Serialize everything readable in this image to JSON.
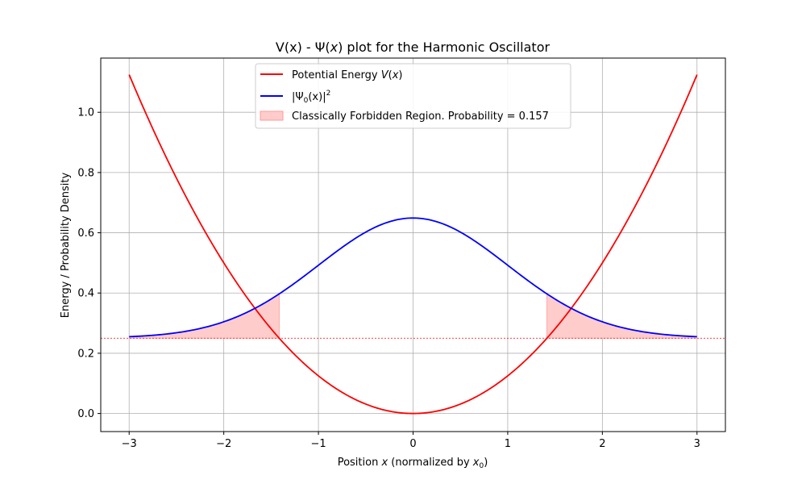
{
  "chart_data": {
    "type": "line",
    "title": "V(x) - Ψ(x) plot for the Harmonic Oscillator",
    "xlabel": "Position x (normalized by x0)",
    "ylabel": "Energy / Probability Density",
    "xlim": [
      -3.3,
      3.3
    ],
    "ylim": [
      -0.06,
      1.18
    ],
    "x_ticks": [
      -3,
      -2,
      -1,
      0,
      1,
      2,
      3
    ],
    "x_tick_labels": [
      "−3",
      "−2",
      "−1",
      "0",
      "1",
      "2",
      "3"
    ],
    "y_ticks": [
      0.0,
      0.2,
      0.4,
      0.6,
      0.8,
      1.0
    ],
    "y_tick_labels": [
      "0.0",
      "0.2",
      "0.4",
      "0.6",
      "0.8",
      "1.0"
    ],
    "grid": true,
    "legend_position": "top-center",
    "energy_level": 0.25,
    "turning_point": 1.414,
    "series": [
      {
        "name": "Potential Energy V(x)",
        "color": "#ff0000",
        "x": [
          -3,
          -2.5,
          -2,
          -1.5,
          -1,
          -0.5,
          0,
          0.5,
          1,
          1.5,
          2,
          2.5,
          3
        ],
        "y": [
          1.125,
          0.781,
          0.5,
          0.281,
          0.125,
          0.031,
          0.0,
          0.031,
          0.125,
          0.281,
          0.5,
          0.781,
          1.125
        ]
      },
      {
        "name": "|Ψ0(x)|²",
        "color": "#0000ff",
        "x": [
          -3,
          -2.5,
          -2,
          -1.5,
          -1,
          -0.5,
          0,
          0.5,
          1,
          1.5,
          2,
          2.5,
          3
        ],
        "y": [
          0.255,
          0.267,
          0.303,
          0.384,
          0.492,
          0.601,
          0.649,
          0.601,
          0.492,
          0.384,
          0.303,
          0.267,
          0.255
        ]
      }
    ],
    "fill": {
      "name": "Classically Forbidden Region. Probability = 0.157",
      "color": "#ffcccc",
      "ranges": [
        [
          -3,
          -1.414
        ],
        [
          1.414,
          3
        ]
      ]
    },
    "legend": {
      "entry_potential_prefix": "Potential Energy ",
      "entry_potential_math": "V",
      "entry_psi": "|Ψ",
      "entry_psi_sub": "0",
      "entry_psi_rest": "(x)|",
      "entry_psi_sup": "2",
      "entry_fill": "Classically Forbidden Region. Probability = 0.157"
    },
    "title_parts": {
      "pre": "V(x) - Ψ(",
      "x": "x",
      "post": ") plot for the Harmonic Oscillator"
    },
    "xlabel_parts": {
      "pre": "Position ",
      "x": "x",
      "mid": " (normalized by ",
      "x0": "x",
      "sub": "0",
      "post": ")"
    }
  }
}
